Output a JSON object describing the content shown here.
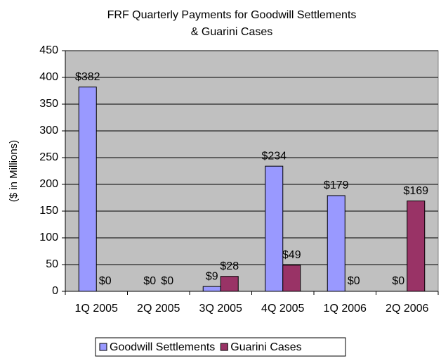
{
  "chart_data": {
    "type": "bar",
    "title": [
      "FRF Quarterly Payments for Goodwill Settlements",
      "& Guarini Cases"
    ],
    "y_label": "($ in Millions)",
    "categories": [
      "1Q 2005",
      "2Q 2005",
      "3Q 2005",
      "4Q 2005",
      "1Q 2006",
      "2Q 2006"
    ],
    "series": [
      {
        "name": "Goodwill Settlements",
        "color": "#9999ff",
        "values": [
          382,
          0,
          9,
          234,
          179,
          0
        ],
        "value_labels": [
          "$382",
          "$0",
          "$9",
          "$234",
          "$179",
          "$0"
        ]
      },
      {
        "name": "Guarini Cases",
        "color": "#993366",
        "values": [
          0,
          0,
          28,
          49,
          0,
          169
        ],
        "value_labels": [
          "$0",
          "$0",
          "$28",
          "$49",
          "$0",
          "$169"
        ]
      }
    ],
    "ylim": [
      0,
      450
    ],
    "yticks": [
      0,
      50,
      100,
      150,
      200,
      250,
      300,
      350,
      400,
      450
    ],
    "grid": true,
    "legend": "bottom",
    "plot_background": "#c0c0c0"
  }
}
